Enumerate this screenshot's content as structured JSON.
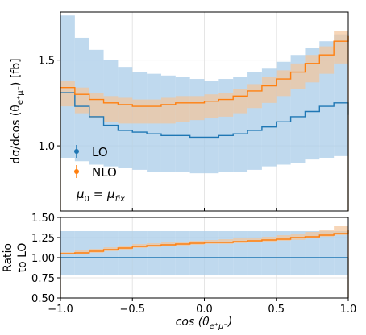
{
  "chart_data": [
    {
      "type": "step",
      "panel": "main",
      "ylabel": "dσ/dcos (θ",
      "ylabel_sup": "e⁺μ⁻",
      "ylabel_tail": ")  [fb]",
      "xlim": [
        -1.0,
        1.0
      ],
      "ylim": [
        0.62,
        1.78
      ],
      "grid": true,
      "legend_position": "lower-left",
      "yticks": [
        "1.0",
        "1.5"
      ],
      "bin_edges": [
        -1.0,
        -0.9,
        -0.8,
        -0.7,
        -0.6,
        -0.5,
        -0.4,
        -0.3,
        -0.2,
        -0.1,
        0.0,
        0.1,
        0.2,
        0.3,
        0.4,
        0.5,
        0.6,
        0.7,
        0.8,
        0.9,
        1.0
      ],
      "series": [
        {
          "name": "LO",
          "color": "#1f77b4",
          "band_color": "#a9cce8",
          "values": [
            1.31,
            1.23,
            1.17,
            1.12,
            1.09,
            1.08,
            1.07,
            1.06,
            1.06,
            1.05,
            1.05,
            1.06,
            1.07,
            1.09,
            1.11,
            1.14,
            1.17,
            1.2,
            1.23,
            1.25,
            1.18
          ],
          "upper": [
            1.76,
            1.63,
            1.56,
            1.5,
            1.46,
            1.43,
            1.42,
            1.41,
            1.4,
            1.39,
            1.38,
            1.39,
            1.4,
            1.43,
            1.45,
            1.49,
            1.53,
            1.57,
            1.61,
            1.65,
            1.59
          ],
          "lower": [
            0.93,
            0.91,
            0.89,
            0.88,
            0.87,
            0.86,
            0.85,
            0.85,
            0.85,
            0.84,
            0.84,
            0.85,
            0.85,
            0.86,
            0.88,
            0.89,
            0.9,
            0.92,
            0.93,
            0.94,
            0.94
          ]
        },
        {
          "name": "NLO",
          "color": "#ff7f0e",
          "band_color": "#f4c59a",
          "values": [
            1.34,
            1.3,
            1.27,
            1.25,
            1.24,
            1.23,
            1.23,
            1.24,
            1.25,
            1.25,
            1.26,
            1.27,
            1.29,
            1.32,
            1.35,
            1.39,
            1.43,
            1.48,
            1.53,
            1.61,
            1.64
          ],
          "upper": [
            1.38,
            1.34,
            1.31,
            1.29,
            1.28,
            1.27,
            1.27,
            1.28,
            1.29,
            1.29,
            1.3,
            1.31,
            1.33,
            1.36,
            1.4,
            1.44,
            1.48,
            1.53,
            1.58,
            1.67,
            1.7
          ],
          "lower": [
            1.23,
            1.19,
            1.16,
            1.14,
            1.13,
            1.13,
            1.13,
            1.13,
            1.14,
            1.15,
            1.16,
            1.17,
            1.19,
            1.22,
            1.25,
            1.29,
            1.33,
            1.37,
            1.42,
            1.48,
            1.54
          ]
        }
      ],
      "legend": [
        {
          "label": "LO",
          "color": "#1f77b4"
        },
        {
          "label": "NLO",
          "color": "#ff7f0e"
        }
      ],
      "annotation_mu": "μ",
      "annotation_sub0": "0",
      "annotation_eq": " = μ",
      "annotation_subfix": "fix"
    },
    {
      "type": "step",
      "panel": "ratio",
      "ylabel_line1": "Ratio",
      "ylabel_line2": "to LO",
      "xlabel": "cos (θ",
      "xlabel_sup": "e⁺μ⁻",
      "xlabel_tail": ")",
      "xlim": [
        -1.0,
        1.0
      ],
      "ylim": [
        0.5,
        1.5
      ],
      "grid": true,
      "xticks": [
        "−1.0",
        "−0.5",
        "0.0",
        "0.5",
        "1.0"
      ],
      "yticks": [
        "0.50",
        "0.75",
        "1.00",
        "1.25",
        "1.50"
      ],
      "bin_edges": [
        -1.0,
        -0.9,
        -0.8,
        -0.7,
        -0.6,
        -0.5,
        -0.4,
        -0.3,
        -0.2,
        -0.1,
        0.0,
        0.1,
        0.2,
        0.3,
        0.4,
        0.5,
        0.6,
        0.7,
        0.8,
        0.9,
        1.0
      ],
      "series": [
        {
          "name": "LO",
          "color": "#1f77b4",
          "band_color": "#a9cce8",
          "values": [
            1.0,
            1.0,
            1.0,
            1.0,
            1.0,
            1.0,
            1.0,
            1.0,
            1.0,
            1.0,
            1.0,
            1.0,
            1.0,
            1.0,
            1.0,
            1.0,
            1.0,
            1.0,
            1.0,
            1.0,
            1.0
          ],
          "upper": [
            1.33,
            1.33,
            1.33,
            1.33,
            1.33,
            1.33,
            1.33,
            1.33,
            1.33,
            1.33,
            1.33,
            1.33,
            1.33,
            1.33,
            1.33,
            1.33,
            1.33,
            1.33,
            1.33,
            1.33,
            1.33
          ],
          "lower": [
            0.79,
            0.79,
            0.79,
            0.79,
            0.79,
            0.79,
            0.79,
            0.79,
            0.79,
            0.79,
            0.79,
            0.79,
            0.79,
            0.79,
            0.79,
            0.79,
            0.79,
            0.79,
            0.79,
            0.79,
            0.79
          ]
        },
        {
          "name": "NLO",
          "color": "#ff7f0e",
          "band_color": "#f4c59a",
          "values": [
            1.05,
            1.06,
            1.08,
            1.1,
            1.12,
            1.14,
            1.15,
            1.16,
            1.17,
            1.18,
            1.19,
            1.19,
            1.2,
            1.21,
            1.22,
            1.23,
            1.25,
            1.26,
            1.28,
            1.3,
            1.35
          ],
          "upper": [
            1.07,
            1.09,
            1.11,
            1.13,
            1.15,
            1.17,
            1.18,
            1.19,
            1.2,
            1.21,
            1.22,
            1.23,
            1.24,
            1.25,
            1.26,
            1.28,
            1.3,
            1.32,
            1.35,
            1.39,
            1.42
          ],
          "lower": [
            1.04,
            1.05,
            1.06,
            1.08,
            1.1,
            1.12,
            1.13,
            1.14,
            1.15,
            1.16,
            1.17,
            1.17,
            1.18,
            1.19,
            1.2,
            1.21,
            1.22,
            1.24,
            1.26,
            1.28,
            1.32
          ]
        }
      ]
    }
  ]
}
